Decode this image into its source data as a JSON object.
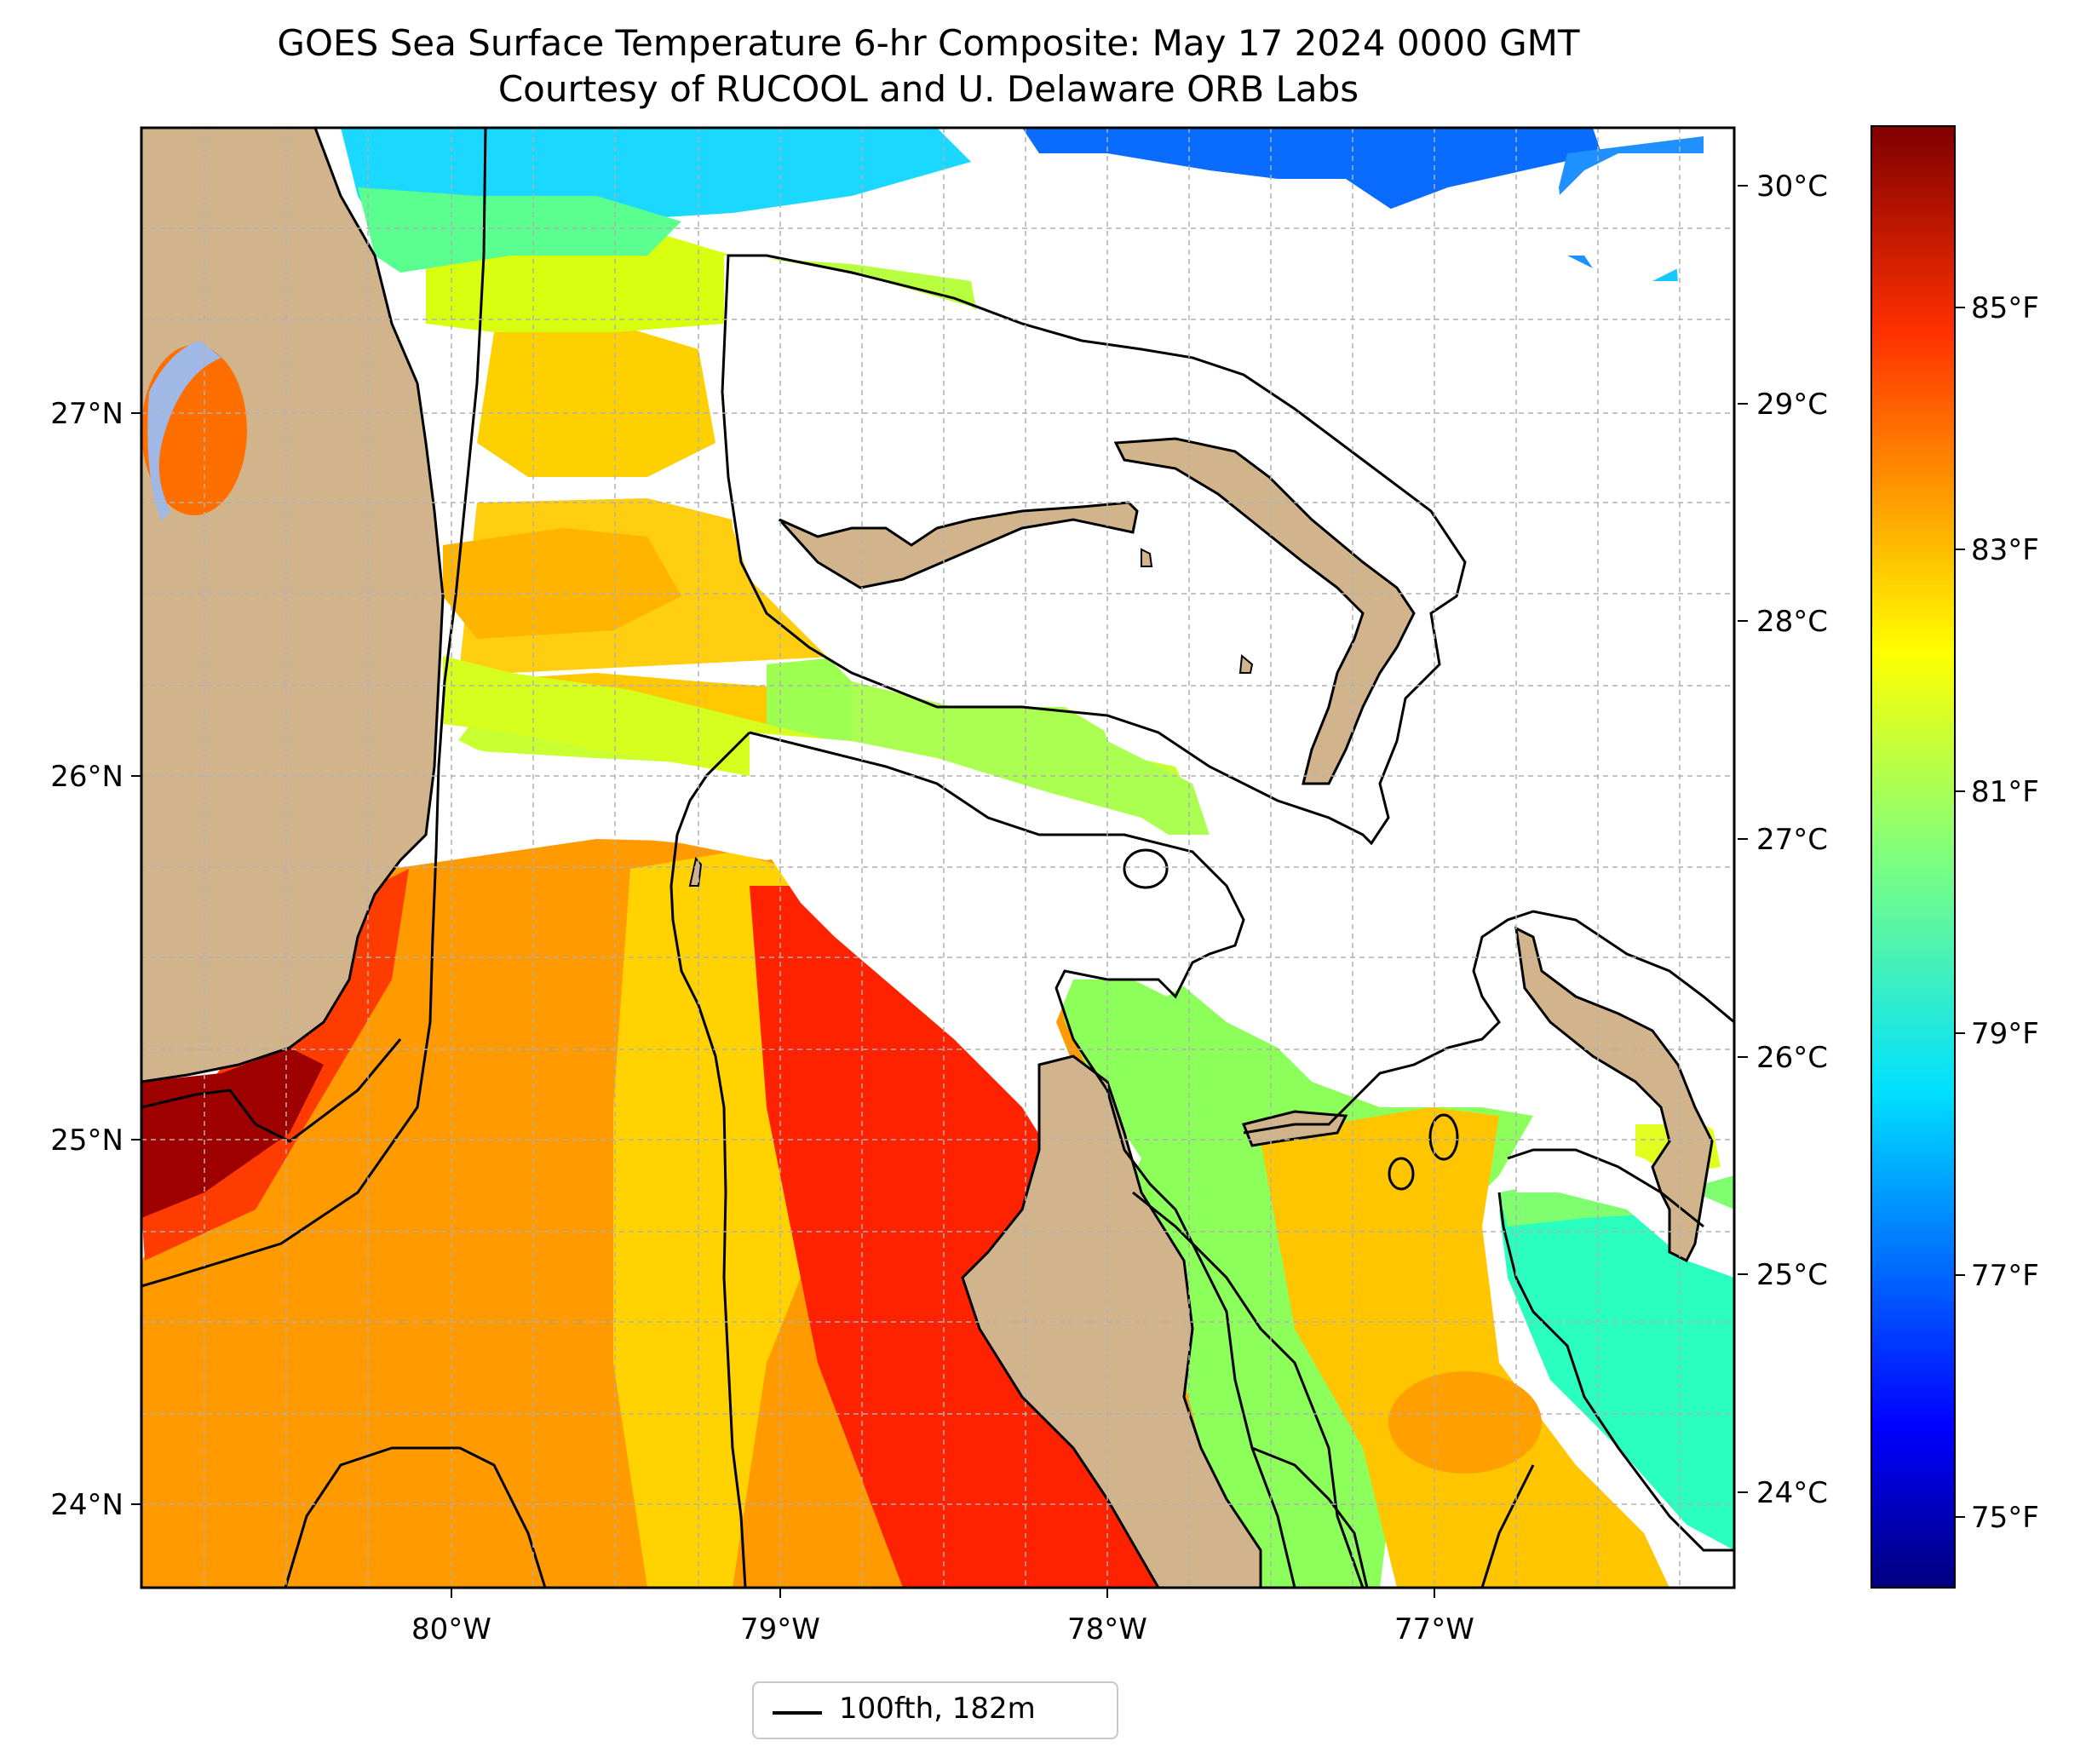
{
  "title": {
    "line1": "GOES Sea Surface Temperature 6-hr Composite: May 17 2024 0000 GMT",
    "line2": "Courtesy of RUCOOL and U. Delaware ORB Labs"
  },
  "map": {
    "lon_range": [
      -80.95,
      -76.1
    ],
    "lat_range": [
      23.75,
      27.8
    ],
    "x_ticks": [
      "80°W",
      "79°W",
      "78°W",
      "77°W"
    ],
    "y_ticks": [
      "27°N",
      "26°N",
      "25°N",
      "24°N"
    ],
    "land_color": "#d2b48c",
    "no_data_color": "#ffffff",
    "gridlines": true
  },
  "colorbar": {
    "colormap": "jet",
    "celsius_ticks": [
      "30°C",
      "29°C",
      "28°C",
      "27°C",
      "26°C",
      "25°C",
      "24°C"
    ],
    "fahrenheit_ticks": [
      "85°F",
      "83°F",
      "81°F",
      "79°F",
      "77°F",
      "75°F"
    ],
    "range_f": [
      74.5,
      86.6
    ]
  },
  "legend": {
    "label": "100fth, 182m"
  },
  "colors": {
    "jet": [
      "#00007f",
      "#0000ff",
      "#007fff",
      "#00ffff",
      "#7fff7f",
      "#ffff00",
      "#ff7f00",
      "#ff0000",
      "#7f0000"
    ],
    "land": "#d2b48c",
    "contour": "#000000"
  }
}
